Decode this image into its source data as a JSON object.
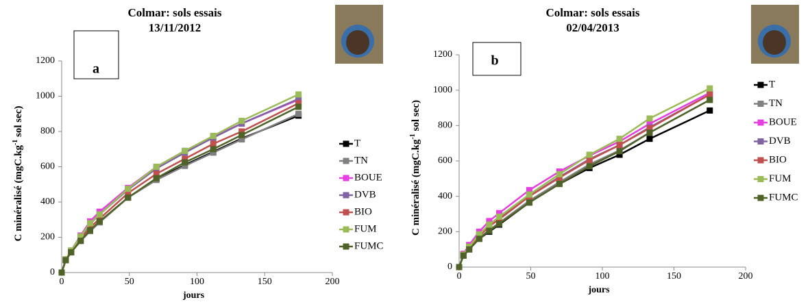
{
  "chart_data": [
    {
      "type": "line",
      "title": "Colmar: sols essais",
      "subtitle": "13/11/2012",
      "panel": "a",
      "x_label": "jours",
      "y_label": [
        "C minéralisé (mgC.kg",
        "-1",
        " sol sec)"
      ],
      "x": [
        0,
        3,
        7,
        14,
        21,
        28,
        49,
        70,
        91,
        112,
        133,
        175
      ],
      "xlim": [
        0,
        200
      ],
      "xticks": [
        0,
        50,
        100,
        150,
        200
      ],
      "ylim": [
        0,
        1200
      ],
      "yticks": [
        0,
        200,
        400,
        600,
        800,
        1000,
        1200
      ],
      "series": [
        {
          "name": "T",
          "color": "#000000",
          "values": [
            0,
            70,
            115,
            180,
            235,
            285,
            425,
            530,
            610,
            685,
            760,
            890
          ]
        },
        {
          "name": "TN",
          "color": "#808080",
          "values": [
            0,
            70,
            115,
            180,
            235,
            285,
            425,
            525,
            605,
            680,
            755,
            900
          ]
        },
        {
          "name": "BOUE",
          "color": "#e63fe0",
          "values": [
            0,
            75,
            125,
            210,
            290,
            345,
            480,
            600,
            690,
            770,
            845,
            980
          ]
        },
        {
          "name": "DVB",
          "color": "#8064a2",
          "values": [
            0,
            75,
            120,
            200,
            275,
            330,
            470,
            590,
            680,
            765,
            845,
            985
          ]
        },
        {
          "name": "BIO",
          "color": "#c0504d",
          "values": [
            0,
            72,
            118,
            190,
            255,
            305,
            450,
            560,
            645,
            730,
            800,
            960
          ]
        },
        {
          "name": "FUM",
          "color": "#9bbb59",
          "values": [
            0,
            75,
            125,
            205,
            280,
            330,
            475,
            600,
            690,
            775,
            860,
            1010
          ]
        },
        {
          "name": "FUMC",
          "color": "#4f6228",
          "values": [
            0,
            70,
            115,
            180,
            240,
            290,
            425,
            535,
            625,
            700,
            780,
            940
          ]
        }
      ]
    },
    {
      "type": "line",
      "title": "Colmar: sols essais",
      "subtitle": "02/04/2013",
      "panel": "b",
      "x_label": "jours",
      "y_label": [
        "C minéralisé (mgC.kg",
        "-1",
        " sol sec)"
      ],
      "x": [
        0,
        3,
        7,
        14,
        21,
        28,
        49,
        70,
        91,
        112,
        133,
        175
      ],
      "xlim": [
        0,
        200
      ],
      "xticks": [
        0,
        50,
        100,
        150,
        200
      ],
      "ylim": [
        0,
        1200
      ],
      "yticks": [
        0,
        200,
        400,
        600,
        800,
        1000,
        1200
      ],
      "series": [
        {
          "name": "T",
          "color": "#000000",
          "values": [
            0,
            65,
            100,
            160,
            200,
            240,
            365,
            470,
            560,
            635,
            725,
            885
          ]
        },
        {
          "name": "TN",
          "color": "#808080",
          "values": [
            0,
            70,
            105,
            165,
            210,
            250,
            375,
            480,
            580,
            660,
            760,
            945
          ]
        },
        {
          "name": "BOUE",
          "color": "#e63fe0",
          "values": [
            0,
            75,
            125,
            200,
            260,
            305,
            435,
            540,
            630,
            710,
            810,
            985
          ]
        },
        {
          "name": "DVB",
          "color": "#8064a2",
          "values": [
            0,
            70,
            115,
            180,
            235,
            275,
            400,
            510,
            610,
            690,
            790,
            975
          ]
        },
        {
          "name": "BIO",
          "color": "#c0504d",
          "values": [
            0,
            70,
            110,
            175,
            230,
            270,
            400,
            505,
            605,
            690,
            785,
            975
          ]
        },
        {
          "name": "FUM",
          "color": "#9bbb59",
          "values": [
            0,
            70,
            115,
            185,
            240,
            285,
            410,
            525,
            635,
            725,
            840,
            1010
          ]
        },
        {
          "name": "FUMC",
          "color": "#4f6228",
          "values": [
            0,
            65,
            100,
            160,
            205,
            245,
            365,
            470,
            570,
            655,
            760,
            945
          ]
        }
      ]
    }
  ]
}
